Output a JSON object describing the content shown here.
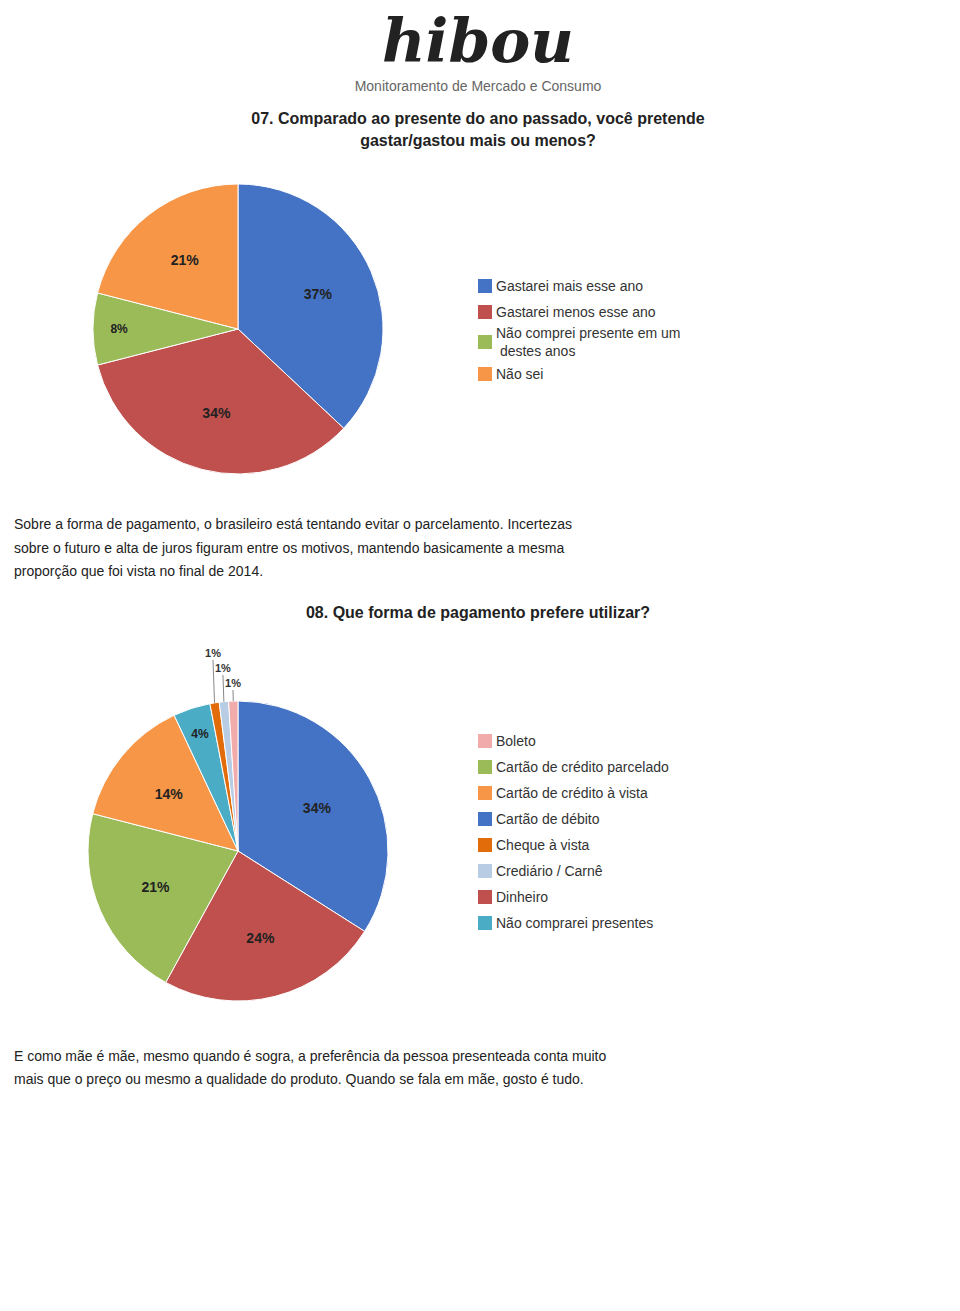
{
  "title": "hibou",
  "subtitle": "Monitoramento de Mercado e Consumo",
  "chart_data": [
    {
      "type": "pie",
      "title": "07. Comparado ao presente do ano passado, você pretende\ngastar/gastou mais ou menos?",
      "categories": [
        "Gastarei mais esse ano",
        "Gastarei menos esse ano",
        "Não comprei presente em um\n destes anos",
        "Não sei"
      ],
      "values": [
        37,
        34,
        8,
        21
      ],
      "value_labels": [
        "37%",
        "34%",
        "8%",
        "21%"
      ],
      "colors": [
        "#4472C4",
        "#C0504D",
        "#9BBB59",
        "#F79646"
      ],
      "data_labels": true,
      "legend": "right",
      "annotations": [
        "Sobre a forma de pagamento, o brasileiro está tentando evitar o parcelamento. Incertezas\nsobre o futuro e alta de juros figuram entre os motivos, mantendo basicamente a mesma\nproporção que foi vista no final de 2014."
      ]
    },
    {
      "type": "pie",
      "title": "08. Que forma de pagamento prefere utilizar?",
      "categories": [
        "Cartão de débito",
        "Dinheiro",
        "Cartão de crédito parcelado",
        "Cartão de crédito à vista",
        "Não comprarei presentes",
        "Cheque à vista",
        "Crediário / Carnê",
        "Boleto"
      ],
      "values": [
        34,
        24,
        21,
        14,
        4,
        1,
        1,
        1
      ],
      "value_labels": [
        "34%",
        "24%",
        "21%",
        "14%",
        "4%",
        "1%",
        "1%",
        "1%"
      ],
      "colors": [
        "#4472C4",
        "#C0504D",
        "#9BBB59",
        "#F79646",
        "#4BACC6",
        "#E36C0A",
        "#B8CCE4",
        "#F2ABAB"
      ],
      "data_labels": true,
      "legend": "right",
      "annotations": [
        "E como mãe é mãe, mesmo quando é sogra, a preferência da pessoa presenteada conta muito\nmais que o preço ou mesmo a qualidade do produto. Quando se fala em mãe, gosto é tudo."
      ]
    }
  ]
}
